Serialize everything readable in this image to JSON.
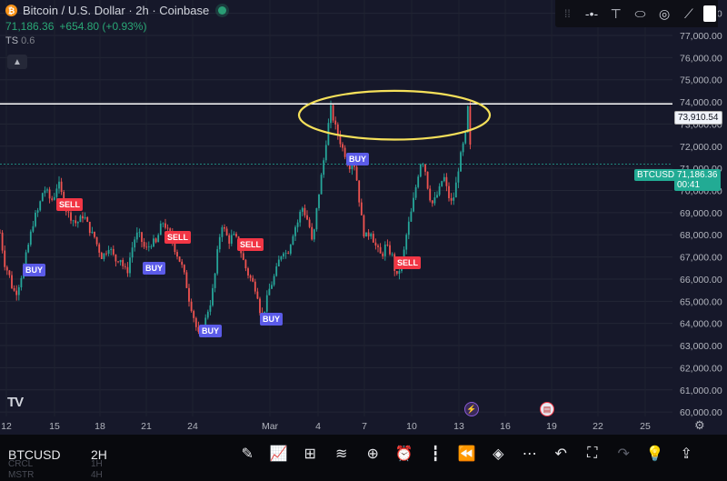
{
  "header": {
    "title": "Bitcoin / U.S. Dollar · 2h · Coinbase",
    "price": "71,186.36",
    "change": "+654.80 (+0.93%)",
    "indicator_label": "TS",
    "indicator_value": "0.6",
    "collapse_icon": "chevron-up-icon"
  },
  "drawing_toolbar": {
    "items": [
      "drag-handle-icon",
      "horizontal-ray-icon",
      "vertical-line-icon",
      "ellipse-icon",
      "circle-target-icon",
      "trend-line-icon",
      "color-swatch-icon"
    ]
  },
  "price_tags": {
    "level_price": "73,910.54",
    "symbol": "BTCUSD",
    "last_price": "71,186.36",
    "countdown": "00:41"
  },
  "signals": [
    {
      "label": "SELL",
      "type": "sell"
    },
    {
      "label": "BUY",
      "type": "buy"
    },
    {
      "label": "BUY",
      "type": "buy"
    },
    {
      "label": "SELL",
      "type": "sell"
    },
    {
      "label": "BUY",
      "type": "buy"
    },
    {
      "label": "SELL",
      "type": "sell"
    },
    {
      "label": "BUY",
      "type": "buy"
    },
    {
      "label": "SELL",
      "type": "sell"
    },
    {
      "label": "BUY",
      "type": "buy"
    }
  ],
  "logo": "TV",
  "bottom_bar": {
    "symbol": "BTCUSD",
    "timeframe": "2H",
    "ghost_rows": [
      [
        "CRCL",
        "1H"
      ],
      [
        "MSTR",
        "4H"
      ]
    ],
    "icons": [
      "brush-icon",
      "indicators-icon",
      "grid-icon",
      "strategy-icon",
      "plus-icon",
      "alarm-icon",
      "candle-icon",
      "rewind-icon",
      "layers-icon",
      "more-icon",
      "undo-icon",
      "fullscreen-icon",
      "redo-icon",
      "lightbulb-icon",
      "share-icon"
    ]
  },
  "chart_data": {
    "type": "candlestick",
    "title": "Bitcoin / U.S. Dollar · 2h · Coinbase",
    "x_ticks": [
      "12",
      "15",
      "18",
      "21",
      "24",
      "Mar",
      "4",
      "7",
      "10",
      "13",
      "16",
      "19",
      "22",
      "25"
    ],
    "y_ticks": [
      60000,
      61000,
      62000,
      63000,
      64000,
      65000,
      66000,
      67000,
      68000,
      69000,
      70000,
      71000,
      72000,
      73000,
      74000,
      75000,
      76000,
      77000,
      78000
    ],
    "ylim": [
      59800,
      78600
    ],
    "horizontal_level": 73910.54,
    "last_price": 71186.36,
    "grid": true,
    "path": [
      [
        0,
        68100
      ],
      [
        5,
        66700
      ],
      [
        10,
        66200
      ],
      [
        14,
        65500
      ],
      [
        18,
        65400
      ],
      [
        22,
        65900
      ],
      [
        26,
        66600
      ],
      [
        30,
        67300
      ],
      [
        34,
        68100
      ],
      [
        38,
        68800
      ],
      [
        42,
        69100
      ],
      [
        45,
        69600
      ],
      [
        48,
        70100
      ],
      [
        52,
        69900
      ],
      [
        56,
        69500
      ],
      [
        60,
        69800
      ],
      [
        64,
        70400
      ],
      [
        68,
        69800
      ],
      [
        72,
        69200
      ],
      [
        76,
        68900
      ],
      [
        80,
        68700
      ],
      [
        84,
        68500
      ],
      [
        88,
        68700
      ],
      [
        92,
        68900
      ],
      [
        96,
        68500
      ],
      [
        100,
        68100
      ],
      [
        104,
        67900
      ],
      [
        108,
        67400
      ],
      [
        112,
        67000
      ],
      [
        116,
        67200
      ],
      [
        120,
        67500
      ],
      [
        124,
        67100
      ],
      [
        128,
        66800
      ],
      [
        132,
        67000
      ],
      [
        136,
        66500
      ],
      [
        140,
        66300
      ],
      [
        144,
        67200
      ],
      [
        148,
        67800
      ],
      [
        152,
        68100
      ],
      [
        156,
        67700
      ],
      [
        160,
        67300
      ],
      [
        164,
        67500
      ],
      [
        168,
        67700
      ],
      [
        172,
        67600
      ],
      [
        176,
        68300
      ],
      [
        180,
        68600
      ],
      [
        184,
        68200
      ],
      [
        188,
        67900
      ],
      [
        192,
        67400
      ],
      [
        196,
        67000
      ],
      [
        200,
        66600
      ],
      [
        204,
        66000
      ],
      [
        208,
        65100
      ],
      [
        212,
        64500
      ],
      [
        216,
        63800
      ],
      [
        220,
        63300
      ],
      [
        224,
        63800
      ],
      [
        228,
        64500
      ],
      [
        232,
        65000
      ],
      [
        236,
        66000
      ],
      [
        240,
        67500
      ],
      [
        244,
        68500
      ],
      [
        248,
        68100
      ],
      [
        252,
        67700
      ],
      [
        256,
        68000
      ],
      [
        260,
        67800
      ],
      [
        264,
        67400
      ],
      [
        268,
        66800
      ],
      [
        272,
        66300
      ],
      [
        276,
        66000
      ],
      [
        280,
        65700
      ],
      [
        284,
        65200
      ],
      [
        288,
        64000
      ],
      [
        292,
        64800
      ],
      [
        296,
        65500
      ],
      [
        300,
        65900
      ],
      [
        304,
        66400
      ],
      [
        308,
        67000
      ],
      [
        312,
        67300
      ],
      [
        316,
        67100
      ],
      [
        320,
        67700
      ],
      [
        324,
        68300
      ],
      [
        328,
        68600
      ],
      [
        332,
        69300
      ],
      [
        336,
        68900
      ],
      [
        340,
        68500
      ],
      [
        344,
        67500
      ],
      [
        348,
        69000
      ],
      [
        352,
        70200
      ],
      [
        356,
        71300
      ],
      [
        360,
        72600
      ],
      [
        364,
        73700
      ],
      [
        368,
        73000
      ],
      [
        372,
        72500
      ],
      [
        376,
        72000
      ],
      [
        380,
        71600
      ],
      [
        384,
        71000
      ],
      [
        388,
        71600
      ],
      [
        392,
        70700
      ],
      [
        396,
        69300
      ],
      [
        400,
        68100
      ],
      [
        404,
        67900
      ],
      [
        408,
        68200
      ],
      [
        412,
        67600
      ],
      [
        416,
        67300
      ],
      [
        420,
        67000
      ],
      [
        424,
        67500
      ],
      [
        428,
        67300
      ],
      [
        432,
        67000
      ],
      [
        436,
        66000
      ],
      [
        440,
        66500
      ],
      [
        444,
        67100
      ],
      [
        448,
        68200
      ],
      [
        452,
        68900
      ],
      [
        456,
        69800
      ],
      [
        460,
        70700
      ],
      [
        464,
        71500
      ],
      [
        468,
        70900
      ],
      [
        472,
        69800
      ],
      [
        476,
        69400
      ],
      [
        480,
        69700
      ],
      [
        484,
        70100
      ],
      [
        488,
        70700
      ],
      [
        492,
        70000
      ],
      [
        496,
        69400
      ],
      [
        500,
        69800
      ],
      [
        504,
        70900
      ],
      [
        508,
        71800
      ],
      [
        512,
        72400
      ],
      [
        515,
        73800
      ],
      [
        518,
        71500
      ]
    ],
    "ellipse": {
      "cx": 10.0,
      "cy": 73400,
      "rx": 5.0,
      "ry": 1100
    },
    "signals": [
      {
        "x": 16,
        "y": 70250
      },
      {
        "x": 25,
        "y": 67980
      },
      {
        "x": 47,
        "y": 68130
      },
      {
        "x": 58,
        "y": 66380
      },
      {
        "x": 62,
        "y": 64830
      },
      {
        "x": 72,
        "y": 67620
      },
      {
        "x": 83,
        "y": 70060
      },
      {
        "x": 92,
        "y": 67160
      },
      {
        "x": 98,
        "y": 66380
      }
    ]
  }
}
